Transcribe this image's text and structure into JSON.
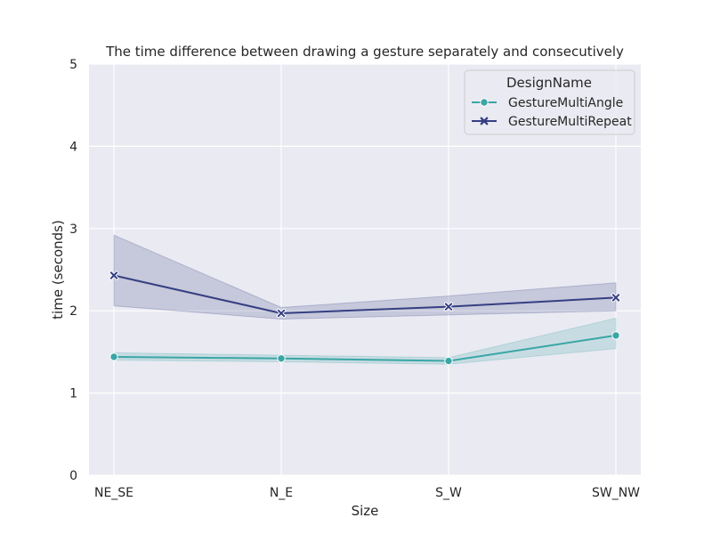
{
  "chart_data": {
    "type": "line",
    "title": "The time difference between drawing a gesture separately and consecutively",
    "xlabel": "Size",
    "ylabel": "time (seconds)",
    "categories": [
      "NE_SE",
      "N_E",
      "S_W",
      "SW_NW"
    ],
    "ylim": [
      0,
      5
    ],
    "yticks": [
      0,
      1,
      2,
      3,
      4,
      5
    ],
    "grid": true,
    "legend": {
      "title": "DesignName",
      "position": "top-right"
    },
    "series": [
      {
        "name": "GestureMultiAngle",
        "marker": "circle",
        "color": "#3aa6a6",
        "values": [
          1.44,
          1.42,
          1.39,
          1.7
        ],
        "ci_low": [
          1.4,
          1.38,
          1.35,
          1.54
        ],
        "ci_high": [
          1.49,
          1.46,
          1.43,
          1.91
        ]
      },
      {
        "name": "GestureMultiRepeat",
        "marker": "x",
        "color": "#353f82",
        "values": [
          2.43,
          1.97,
          2.05,
          2.16
        ],
        "ci_low": [
          2.06,
          1.9,
          1.95,
          2.0
        ],
        "ci_high": [
          2.92,
          2.04,
          2.18,
          2.34
        ]
      }
    ]
  }
}
